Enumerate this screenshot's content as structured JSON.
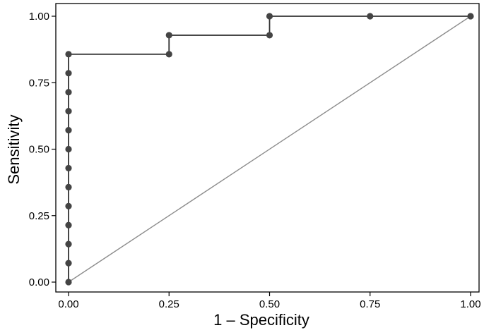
{
  "chart_data": {
    "type": "line",
    "title": "",
    "xlabel": "1 – Specificity",
    "ylabel": "Sensitivity",
    "xlim": [
      0,
      1
    ],
    "ylim": [
      0,
      1
    ],
    "x_ticks": [
      0,
      0.25,
      0.5,
      0.75,
      1
    ],
    "x_tick_labels": [
      "0.00",
      "0.25",
      "0.50",
      "0.75",
      "1.00"
    ],
    "y_ticks": [
      0,
      0.25,
      0.5,
      0.75,
      1
    ],
    "y_tick_labels": [
      "0.00",
      "0.25",
      "0.50",
      "0.75",
      "1.00"
    ],
    "grid": false,
    "series": [
      {
        "style": "step-line-with-markers",
        "x": [
          0,
          0,
          0,
          0,
          0,
          0,
          0,
          0,
          0,
          0,
          0,
          0,
          0,
          0.25,
          0.25,
          0.5,
          0.5,
          0.75,
          1
        ],
        "y": [
          0,
          0.0714,
          0.1429,
          0.2143,
          0.2857,
          0.3571,
          0.4286,
          0.5,
          0.5714,
          0.6429,
          0.7143,
          0.7857,
          0.8571,
          0.8571,
          0.9286,
          0.9286,
          1,
          1,
          1
        ]
      },
      {
        "style": "reference-diagonal",
        "x": [
          0,
          1
        ],
        "y": [
          0,
          1
        ]
      }
    ]
  },
  "colors": {
    "roc_line": "#333333",
    "roc_marker": "#444444",
    "reference_line": "#8c8c8c",
    "axis": "#000000"
  }
}
